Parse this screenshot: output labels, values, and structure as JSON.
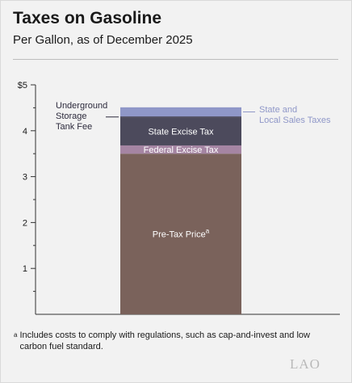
{
  "title": "Taxes on Gasoline",
  "subtitle": "Per Gallon, as of December 2025",
  "footnote": {
    "marker": "a",
    "text": "Includes costs to comply with regulations, such as cap-and-invest and low carbon fuel standard."
  },
  "logo": "LAO",
  "chart_data": {
    "type": "bar",
    "stacked": true,
    "categories": [
      ""
    ],
    "ylim": [
      0,
      5
    ],
    "yticks": [
      "1",
      "2",
      "3",
      "4",
      "$5"
    ],
    "ytick_values": [
      1,
      2,
      3,
      4,
      5
    ],
    "grid": "horizontal-minor-ticks",
    "series": [
      {
        "name": "Pre-Tax Price",
        "superscript": "a",
        "values": [
          3.5
        ],
        "color": "#7a625b",
        "label_color": "#ffffff",
        "label_position": "inside"
      },
      {
        "name": "Federal Excise Tax",
        "values": [
          0.18
        ],
        "color": "#a585a3",
        "label_color": "#ffffff",
        "label_position": "inside"
      },
      {
        "name": "State Excise Tax",
        "values": [
          0.61
        ],
        "color": "#4c4a5c",
        "label_color": "#ffffff",
        "label_position": "inside"
      },
      {
        "name": "Underground Storage Tank Fee",
        "lines": [
          "Underground",
          "Storage",
          "Tank Fee"
        ],
        "values": [
          0.02
        ],
        "color": "#2c2a3c",
        "label_color": "#2c2a3c",
        "label_position": "left"
      },
      {
        "name": "State and Local Sales Taxes",
        "lines": [
          "State and",
          "Local Sales Taxes"
        ],
        "values": [
          0.2
        ],
        "color": "#8f97c8",
        "label_color": "#8f97c8",
        "label_position": "right"
      }
    ]
  }
}
